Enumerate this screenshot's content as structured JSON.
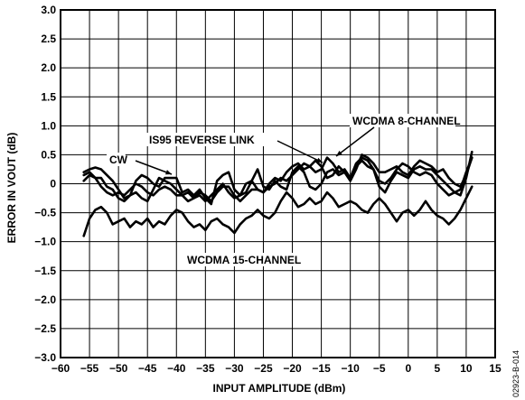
{
  "chart_data": {
    "type": "line",
    "xlabel": "INPUT AMPLITUDE (dBm)",
    "ylabel": "ERROR IN VOUT (dB)",
    "xlim": [
      -60,
      15
    ],
    "ylim": [
      -3.0,
      3.0
    ],
    "x_ticks": [
      "−60",
      "−55",
      "−50",
      "−45",
      "−40",
      "−35",
      "−30",
      "−25",
      "−20",
      "−15",
      "−10",
      "−5",
      "0",
      "5",
      "10",
      "15"
    ],
    "y_ticks": [
      "3.0",
      "2.5",
      "2.0",
      "1.5",
      "1.0",
      "0.5",
      "0",
      "−0.5",
      "−1.0",
      "−1.5",
      "−2.0",
      "−2.5",
      "−3.0"
    ],
    "grid": true,
    "line_color": "#000000",
    "annotations": [
      "WCDMA 8-CHANNEL",
      "IS95 REVERSE LINK",
      "CW",
      "WCDMA 15-CHANNEL"
    ],
    "figure_code": "02923-B-014",
    "series": [
      {
        "name": "CW",
        "x": [
          -56,
          -55,
          -54,
          -53,
          -52,
          -51,
          -50,
          -49,
          -48,
          -47,
          -46,
          -45,
          -44,
          -43,
          -42,
          -41,
          -40,
          -39,
          -38,
          -37,
          -36,
          -35,
          -34,
          -33,
          -32,
          -31,
          -30,
          -29,
          -28,
          -27,
          -26,
          -25,
          -24,
          -23,
          -22,
          -21,
          -20,
          -19,
          -18,
          -17,
          -16,
          -15,
          -14,
          -13,
          -12,
          -11,
          -10,
          -9,
          -8,
          -7,
          -6,
          -5,
          -4,
          -3,
          -2,
          -1,
          0,
          1,
          2,
          3,
          4,
          5,
          6,
          7,
          8,
          9,
          10,
          11
        ],
        "values": [
          0.2,
          0.25,
          0.28,
          0.25,
          0.15,
          0.05,
          -0.1,
          -0.25,
          -0.2,
          0.05,
          0.15,
          0.1,
          0,
          -0.05,
          0.1,
          0.1,
          0.1,
          -0.15,
          -0.1,
          -0.2,
          -0.1,
          -0.25,
          -0.35,
          0.05,
          0.15,
          0.2,
          -0.1,
          -0.2,
          -0.15,
          0.05,
          0.25,
          -0.05,
          -0.1,
          0.05,
          -0.05,
          -0.1,
          0.2,
          0.3,
          0.2,
          -0.05,
          -0.1,
          0,
          0.2,
          0.25,
          0.15,
          0.2,
          0.1,
          0.3,
          0.4,
          0.3,
          0.25,
          -0.05,
          -0.15,
          0.05,
          0.2,
          0.15,
          0.1,
          0.25,
          0.3,
          0.25,
          0.25,
          0.15,
          0.05,
          -0.05,
          -0.15,
          -0.2,
          0.1,
          0.55
        ]
      },
      {
        "name": "IS95 REVERSE LINK",
        "x": [
          -56,
          -55,
          -54,
          -53,
          -52,
          -51,
          -50,
          -49,
          -48,
          -47,
          -46,
          -45,
          -44,
          -43,
          -42,
          -41,
          -40,
          -39,
          -38,
          -37,
          -36,
          -35,
          -34,
          -33,
          -32,
          -31,
          -30,
          -29,
          -28,
          -27,
          -26,
          -25,
          -24,
          -23,
          -22,
          -21,
          -20,
          -19,
          -18,
          -17,
          -16,
          -15,
          -14,
          -13,
          -12,
          -11,
          -10,
          -9,
          -8,
          -7,
          -6,
          -5,
          -4,
          -3,
          -2,
          -1,
          0,
          1,
          2,
          3,
          4,
          5,
          6,
          7,
          8,
          9,
          10,
          11
        ],
        "values": [
          0.15,
          0.2,
          0.1,
          0.1,
          -0.05,
          -0.1,
          -0.25,
          -0.3,
          -0.2,
          -0.15,
          -0.25,
          -0.3,
          -0.1,
          0.1,
          0.05,
          0,
          -0.1,
          -0.2,
          -0.15,
          -0.25,
          -0.2,
          -0.3,
          -0.2,
          -0.1,
          0,
          -0.15,
          -0.25,
          -0.2,
          0,
          0.05,
          -0.1,
          -0.15,
          0,
          0.1,
          0.05,
          0.2,
          0.3,
          0.35,
          0.25,
          0.3,
          0.4,
          0.3,
          0.1,
          0.15,
          0.3,
          0.2,
          0.05,
          0.25,
          0.5,
          0.45,
          0.35,
          0.2,
          0.2,
          0.25,
          0.3,
          0.2,
          0.15,
          0.3,
          0.4,
          0.35,
          0.3,
          0.2,
          0.25,
          0.1,
          0,
          -0.05,
          0.15,
          0.45
        ]
      },
      {
        "name": "WCDMA 8-CHANNEL",
        "x": [
          -56,
          -55,
          -54,
          -53,
          -52,
          -51,
          -50,
          -49,
          -48,
          -47,
          -46,
          -45,
          -44,
          -43,
          -42,
          -41,
          -40,
          -39,
          -38,
          -37,
          -36,
          -35,
          -34,
          -33,
          -32,
          -31,
          -30,
          -29,
          -28,
          -27,
          -26,
          -25,
          -24,
          -23,
          -22,
          -21,
          -20,
          -19,
          -18,
          -17,
          -16,
          -15,
          -14,
          -13,
          -12,
          -11,
          -10,
          -9,
          -8,
          -7,
          -6,
          -5,
          -4,
          -3,
          -2,
          -1,
          0,
          1,
          2,
          3,
          4,
          5,
          6,
          7,
          8,
          9,
          10,
          11
        ],
        "values": [
          0.05,
          0.15,
          0.1,
          -0.05,
          -0.15,
          -0.2,
          -0.15,
          -0.2,
          -0.1,
          0,
          -0.05,
          -0.15,
          -0.2,
          -0.1,
          -0.05,
          -0.1,
          -0.2,
          -0.2,
          -0.3,
          -0.25,
          -0.15,
          -0.2,
          -0.3,
          -0.15,
          -0.05,
          -0.05,
          -0.2,
          -0.3,
          -0.2,
          -0.1,
          -0.1,
          -0.15,
          -0.05,
          0,
          0.1,
          0.05,
          0.15,
          0.25,
          0.35,
          0.3,
          0.2,
          0.25,
          0.45,
          0.35,
          0.2,
          0.25,
          0.1,
          0.35,
          0.45,
          0.4,
          0.25,
          0.05,
          0,
          0.1,
          0.25,
          0.35,
          0.3,
          0.2,
          0.15,
          0.2,
          0.15,
          0,
          -0.1,
          -0.2,
          -0.15,
          -0.1,
          0.2,
          0.45
        ]
      },
      {
        "name": "WCDMA 15-CHANNEL",
        "x": [
          -56,
          -55,
          -54,
          -53,
          -52,
          -51,
          -50,
          -49,
          -48,
          -47,
          -46,
          -45,
          -44,
          -43,
          -42,
          -41,
          -40,
          -39,
          -38,
          -37,
          -36,
          -35,
          -34,
          -33,
          -32,
          -31,
          -30,
          -29,
          -28,
          -27,
          -26,
          -25,
          -24,
          -23,
          -22,
          -21,
          -20,
          -19,
          -18,
          -17,
          -16,
          -15,
          -14,
          -13,
          -12,
          -11,
          -10,
          -9,
          -8,
          -7,
          -6,
          -5,
          -4,
          -3,
          -2,
          -1,
          0,
          1,
          2,
          3,
          4,
          5,
          6,
          7,
          8,
          9,
          10,
          11
        ],
        "values": [
          -0.9,
          -0.6,
          -0.45,
          -0.4,
          -0.5,
          -0.7,
          -0.65,
          -0.6,
          -0.75,
          -0.65,
          -0.7,
          -0.6,
          -0.75,
          -0.65,
          -0.7,
          -0.55,
          -0.45,
          -0.5,
          -0.65,
          -0.75,
          -0.7,
          -0.8,
          -0.65,
          -0.6,
          -0.7,
          -0.75,
          -0.85,
          -0.7,
          -0.6,
          -0.55,
          -0.45,
          -0.55,
          -0.6,
          -0.5,
          -0.3,
          -0.15,
          -0.25,
          -0.4,
          -0.35,
          -0.25,
          -0.35,
          -0.3,
          -0.15,
          -0.25,
          -0.4,
          -0.35,
          -0.3,
          -0.35,
          -0.45,
          -0.5,
          -0.35,
          -0.25,
          -0.35,
          -0.5,
          -0.65,
          -0.5,
          -0.45,
          -0.55,
          -0.45,
          -0.3,
          -0.45,
          -0.55,
          -0.6,
          -0.7,
          -0.6,
          -0.45,
          -0.25,
          -0.05
        ]
      }
    ]
  }
}
